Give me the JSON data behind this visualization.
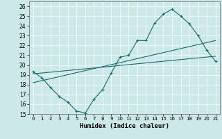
{
  "xlabel": "Humidex (Indice chaleur)",
  "xlim": [
    -0.5,
    21.5
  ],
  "ylim": [
    15,
    26.5
  ],
  "yticks": [
    15,
    16,
    17,
    18,
    19,
    20,
    21,
    22,
    23,
    24,
    25,
    26
  ],
  "xticks": [
    0,
    1,
    2,
    3,
    4,
    5,
    6,
    7,
    8,
    9,
    10,
    11,
    12,
    13,
    14,
    15,
    16,
    17,
    18,
    19,
    20,
    21
  ],
  "bg_color": "#cce8e8",
  "line_color": "#1a6b6b",
  "line1_x": [
    0,
    1,
    2,
    3,
    4,
    5,
    6,
    7,
    8,
    9,
    10,
    11,
    12,
    13,
    14,
    15,
    16,
    17,
    18,
    19,
    20,
    21
  ],
  "line1_y": [
    19.3,
    18.7,
    17.7,
    16.8,
    16.2,
    15.3,
    15.1,
    16.5,
    17.5,
    19.2,
    20.8,
    21.0,
    22.5,
    22.5,
    24.3,
    25.2,
    25.7,
    25.0,
    24.2,
    23.0,
    21.5,
    20.4
  ],
  "line2_x": [
    0,
    21
  ],
  "line2_y": [
    19.1,
    20.9
  ],
  "line3_x": [
    0,
    21
  ],
  "line3_y": [
    18.2,
    22.5
  ]
}
